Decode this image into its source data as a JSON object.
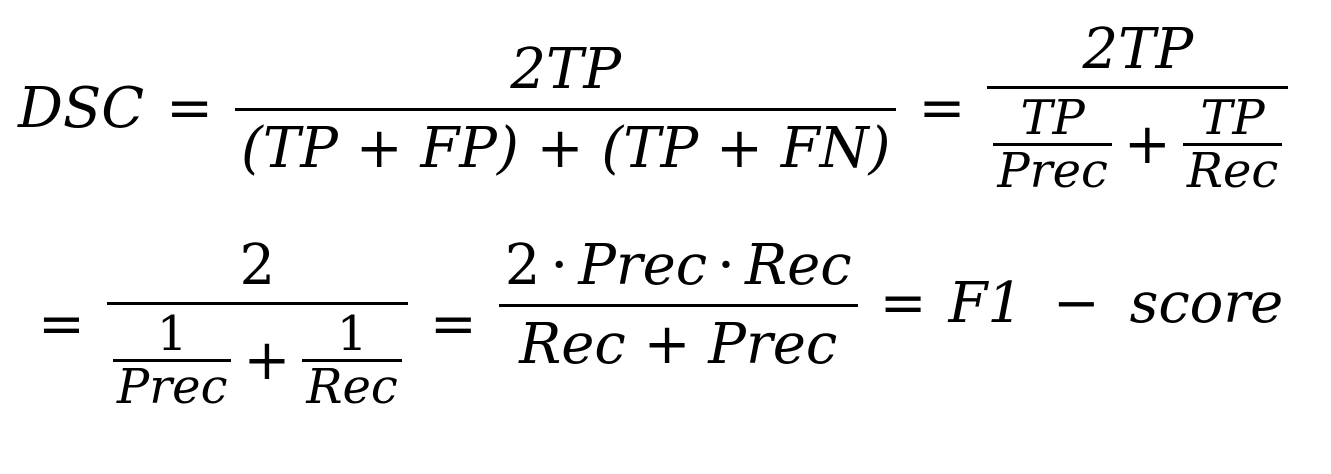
{
  "formula": {
    "lhs": "DSC",
    "eq": "=",
    "plus": "+",
    "minus": "−",
    "cdot": "·",
    "f1": {
      "num": "2TP",
      "den": "(TP + FP) + (TP + FN)"
    },
    "f2": {
      "num": "2TP",
      "den_a_num": "TP",
      "den_a_den": "Prec",
      "den_b_num": "TP",
      "den_b_den": "Rec"
    },
    "f3": {
      "num": "2",
      "den_a_num": "1",
      "den_a_den": "Prec",
      "den_b_num": "1",
      "den_b_den": "Rec"
    },
    "f4": {
      "num_2": "2",
      "num_prec": "Prec",
      "num_rec": "Rec",
      "den": "Rec + Prec"
    },
    "result_f1": "F1",
    "result_score": "score"
  }
}
